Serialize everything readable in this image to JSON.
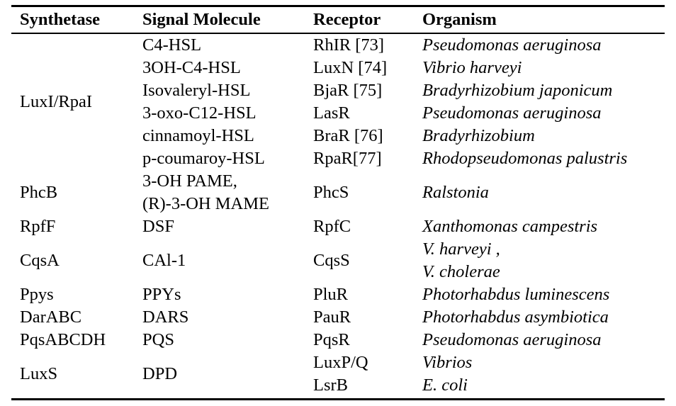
{
  "headers": {
    "synthetase": "Synthetase",
    "signal": "Signal Molecule",
    "receptor": "Receptor",
    "organism": "Organism"
  },
  "groups": [
    {
      "synthetase": "LuxI/RpaI",
      "rows": [
        {
          "signal": "C4-HSL",
          "receptor": "RhIR [73]",
          "organism": "Pseudomonas aeruginosa"
        },
        {
          "signal": "3OH-C4-HSL",
          "receptor": "LuxN [74]",
          "organism": "Vibrio harveyi"
        },
        {
          "signal": "Isovaleryl-HSL",
          "receptor": "BjaR [75]",
          "organism": "Bradyrhizobium japonicum"
        },
        {
          "signal": "3-oxo-C12-HSL",
          "receptor": "LasR",
          "organism": "Pseudomonas aeruginosa"
        },
        {
          "signal": "cinnamoyl-HSL",
          "receptor": "BraR [76]",
          "organism": "Bradyrhizobium"
        },
        {
          "signal": "p-coumaroy-HSL",
          "receptor": "RpaR[77]",
          "organism": "Rhodopseudomonas palustris"
        }
      ]
    },
    {
      "synthetase": "PhcB",
      "signal_lines": [
        "3-OH PAME,",
        "(R)-3-OH MAME"
      ],
      "receptor": "PhcS",
      "organism": "Ralstonia"
    },
    {
      "synthetase": "RpfF",
      "signal": "DSF",
      "receptor": "RpfC",
      "organism": "Xanthomonas campestris"
    },
    {
      "synthetase": "CqsA",
      "signal": "CAl-1",
      "receptor": "CqsS",
      "organism_lines": [
        "V. harveyi ,",
        "V. cholerae"
      ]
    },
    {
      "synthetase": "Ppys",
      "signal": "PPYs",
      "receptor": "PluR",
      "organism": "Photorhabdus luminescens"
    },
    {
      "synthetase": "DarABC",
      "signal": "DARS",
      "receptor": "PauR",
      "organism": "Photorhabdus asymbiotica"
    },
    {
      "synthetase": "PqsABCDH",
      "signal": "PQS",
      "receptor": "PqsR",
      "organism": "Pseudomonas aeruginosa"
    },
    {
      "synthetase": "LuxS",
      "signal": "DPD",
      "rows": [
        {
          "receptor": "LuxP/Q",
          "organism": "Vibrios"
        },
        {
          "receptor": "LsrB",
          "organism": "E. coli"
        }
      ]
    }
  ]
}
